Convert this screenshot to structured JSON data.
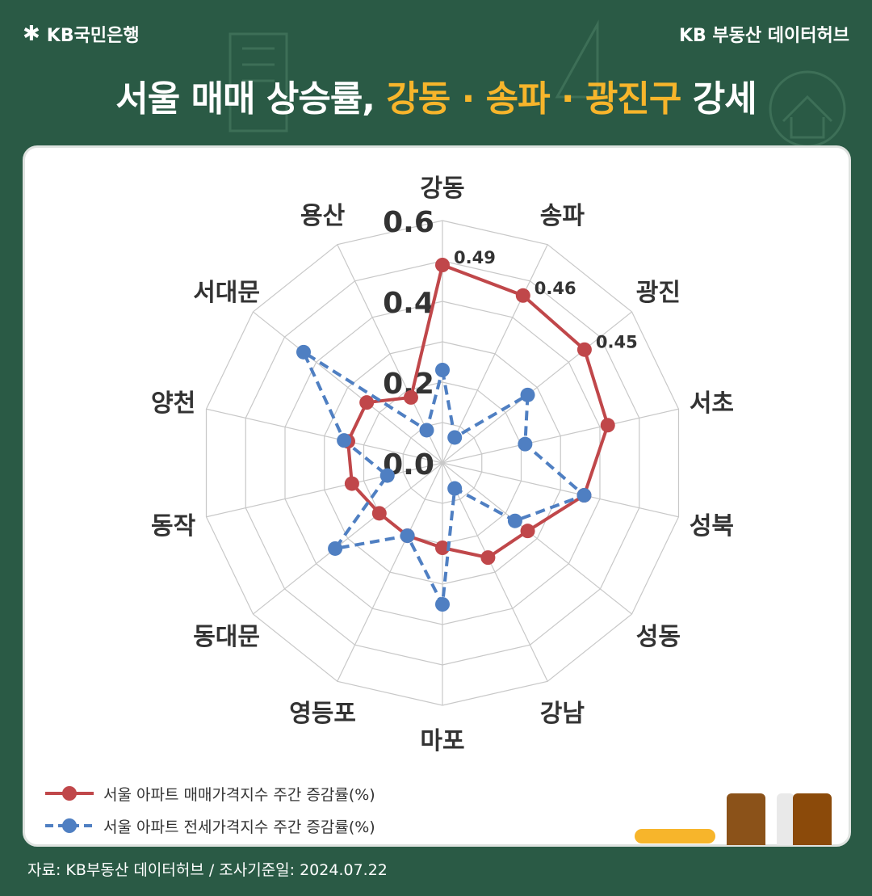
{
  "header": {
    "logo_text": "KB국민은행",
    "right_text": "KB 부동산  데이터허브"
  },
  "title": {
    "part1": "서울 매매 상승률, ",
    "highlight": "강동 · 송파 · 광진구",
    "part2": " 강세"
  },
  "chart_data": {
    "type": "radar",
    "categories": [
      "강동",
      "송파",
      "광진",
      "서초",
      "성북",
      "성동",
      "강남",
      "마포",
      "영등포",
      "동대문",
      "동작",
      "양천",
      "서대문",
      "용산"
    ],
    "rlim": [
      0.0,
      0.6
    ],
    "r_ticks": [
      "0.0",
      "0.2",
      "0.4",
      "0.6"
    ],
    "grid": true,
    "series": [
      {
        "name": "서울 아파트 매매가격지수 주간 증감률(%)",
        "color": "#c0474a",
        "style": "solid",
        "values": [
          0.49,
          0.46,
          0.45,
          0.42,
          0.36,
          0.27,
          0.26,
          0.21,
          0.2,
          0.2,
          0.23,
          0.24,
          0.24,
          0.18
        ]
      },
      {
        "name": "서울 아파트 전세가격지수 주간 증감률(%)",
        "color": "#4f7fc2",
        "style": "dashed",
        "values": [
          0.23,
          0.07,
          0.27,
          0.21,
          0.36,
          0.23,
          0.07,
          0.35,
          0.2,
          0.34,
          0.14,
          0.25,
          0.44,
          0.09
        ]
      }
    ],
    "data_labels": [
      {
        "series": 0,
        "index": 0,
        "text": "0.49"
      },
      {
        "series": 0,
        "index": 1,
        "text": "0.46"
      },
      {
        "series": 0,
        "index": 2,
        "text": "0.45"
      }
    ]
  },
  "footer": {
    "source": "자료: KB부동산 데이터허브 / 조사기준일: 2024.07.22"
  }
}
